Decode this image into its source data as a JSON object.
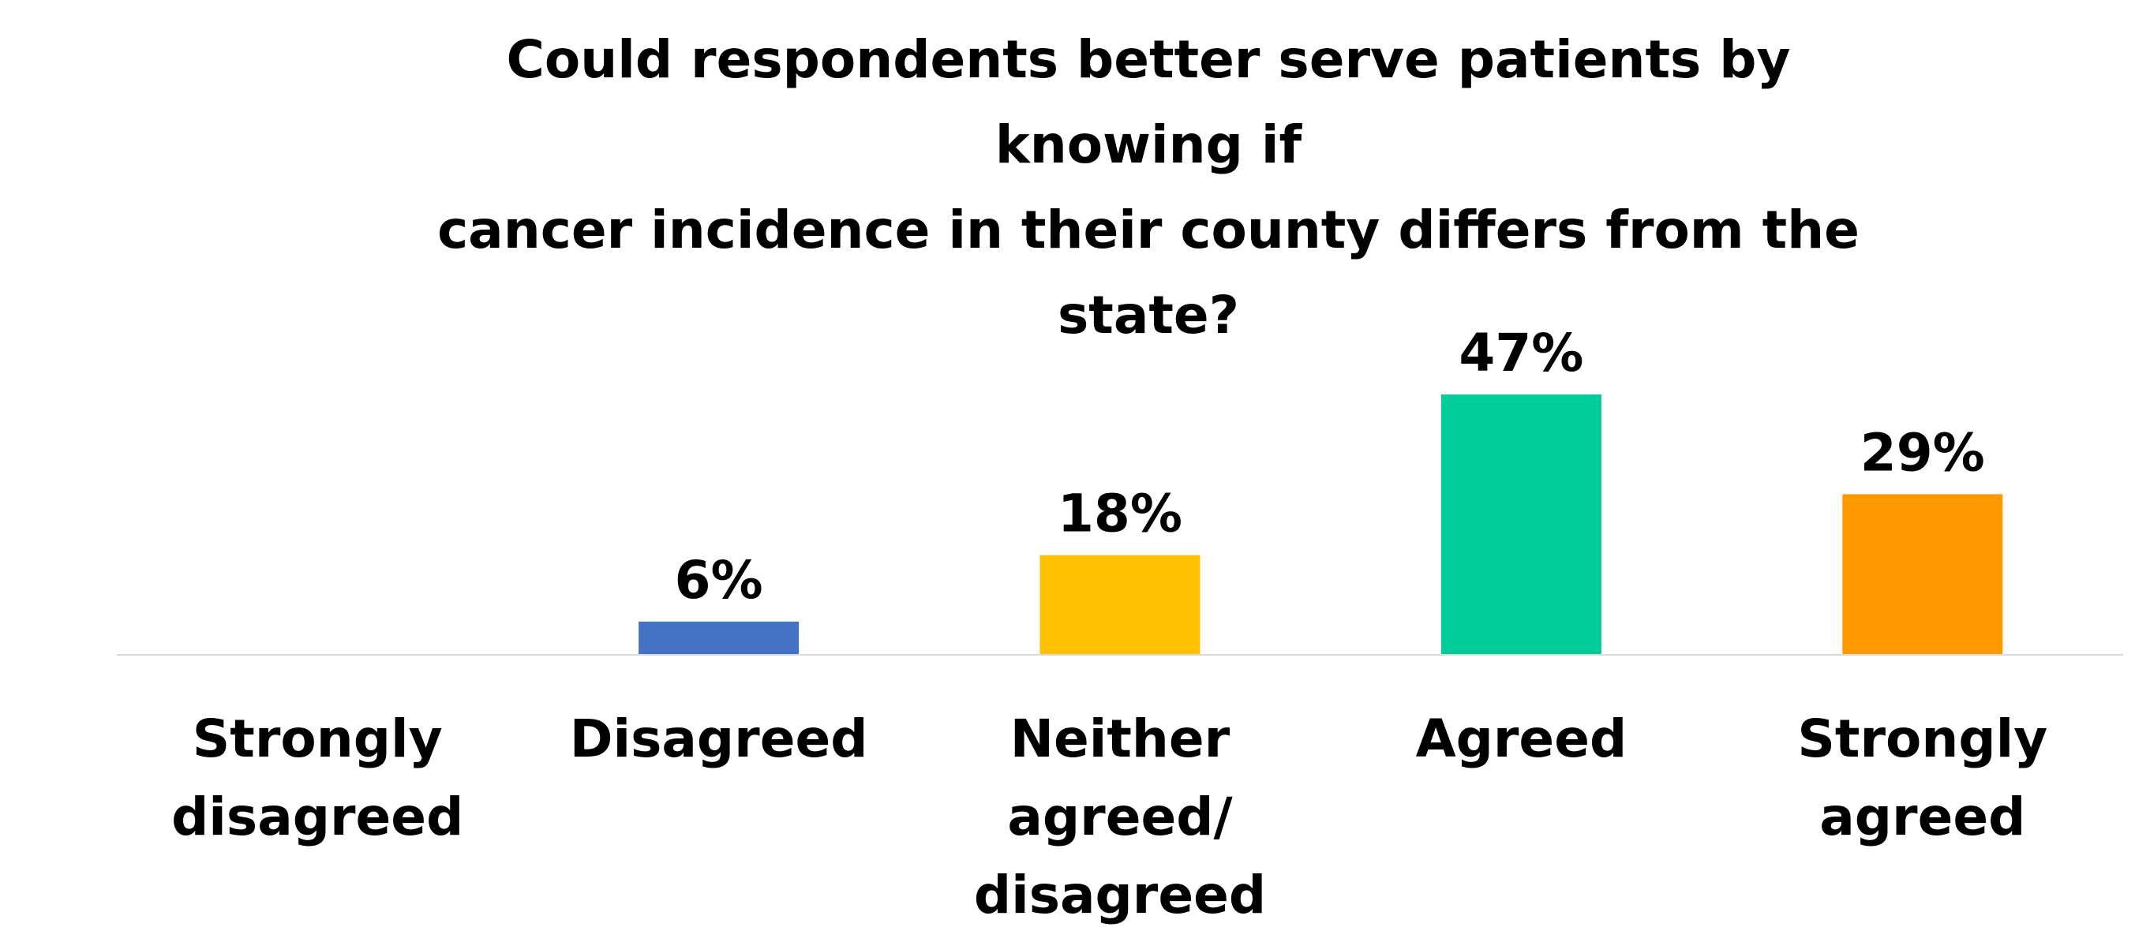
{
  "chart_data": {
    "type": "bar",
    "title_lines": [
      "Could respondents better serve patients by knowing if",
      "cancer incidence in their county differs from the state?"
    ],
    "categories": [
      [
        "Strongly",
        "disagreed"
      ],
      [
        "Disagreed"
      ],
      [
        "Neither",
        "agreed/",
        "disagreed"
      ],
      [
        "Agreed"
      ],
      [
        "Strongly",
        "agreed"
      ]
    ],
    "values": [
      0,
      6,
      18,
      47,
      29
    ],
    "data_labels": [
      "",
      "6%",
      "18%",
      "47%",
      "29%"
    ],
    "colors": [
      "#4472C4",
      "#4472C4",
      "#FFC000",
      "#00CC99",
      "#FF9900"
    ],
    "axis_color": "#D9D9D9",
    "xlabel": "",
    "ylabel": "",
    "ylim": [
      0,
      50
    ],
    "grid": false,
    "legend": "none"
  }
}
